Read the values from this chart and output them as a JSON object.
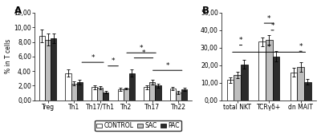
{
  "panel_A": {
    "categories": [
      "Treg",
      "Th1",
      "Th17/Th1",
      "Th2",
      "Th17",
      "Th22"
    ],
    "control_means": [
      8.8,
      3.7,
      1.8,
      1.5,
      1.8,
      1.6
    ],
    "control_errors": [
      0.9,
      0.5,
      0.3,
      0.25,
      0.3,
      0.25
    ],
    "sac_means": [
      8.3,
      2.3,
      1.7,
      1.6,
      2.5,
      1.1
    ],
    "sac_errors": [
      0.8,
      0.3,
      0.2,
      0.15,
      0.35,
      0.2
    ],
    "pac_means": [
      8.5,
      2.5,
      1.1,
      3.7,
      2.0,
      1.5
    ],
    "pac_errors": [
      0.7,
      0.3,
      0.15,
      0.5,
      0.25,
      0.2
    ],
    "ylim": [
      0,
      12
    ],
    "yticks": [
      0.0,
      2.0,
      4.0,
      6.0,
      8.0,
      10.0,
      12.0
    ],
    "ytick_labels": [
      "0,00",
      "2,00",
      "4,00",
      "6,00",
      "8,00",
      "10,00",
      "12,00"
    ],
    "ylabel": "% in T cells",
    "title": "A"
  },
  "panel_B": {
    "categories": [
      "total NKT",
      "TCRγδ+",
      "dn MAIT"
    ],
    "control_means": [
      11.5,
      33.5,
      16.0
    ],
    "control_errors": [
      1.8,
      2.5,
      2.5
    ],
    "sac_means": [
      14.5,
      34.5,
      19.0
    ],
    "sac_errors": [
      2.0,
      2.8,
      2.8
    ],
    "pac_means": [
      20.5,
      25.0,
      10.5
    ],
    "pac_errors": [
      2.5,
      3.0,
      1.5
    ],
    "ylim": [
      0,
      50
    ],
    "yticks": [
      0.0,
      10.0,
      20.0,
      30.0,
      40.0,
      50.0
    ],
    "ytick_labels": [
      "0,00",
      "10,00",
      "20,00",
      "30,00",
      "40,00",
      "50,00"
    ],
    "ylabel": "",
    "title": "B"
  },
  "bar_colors": {
    "control": "#ffffff",
    "sac": "#bebebe",
    "pac": "#2b2b2b"
  },
  "bar_edgecolor": "#000000",
  "bar_width": 0.22,
  "legend_labels": [
    "CONTROL",
    "SAC",
    "PAC"
  ],
  "fontsize": 5.5
}
